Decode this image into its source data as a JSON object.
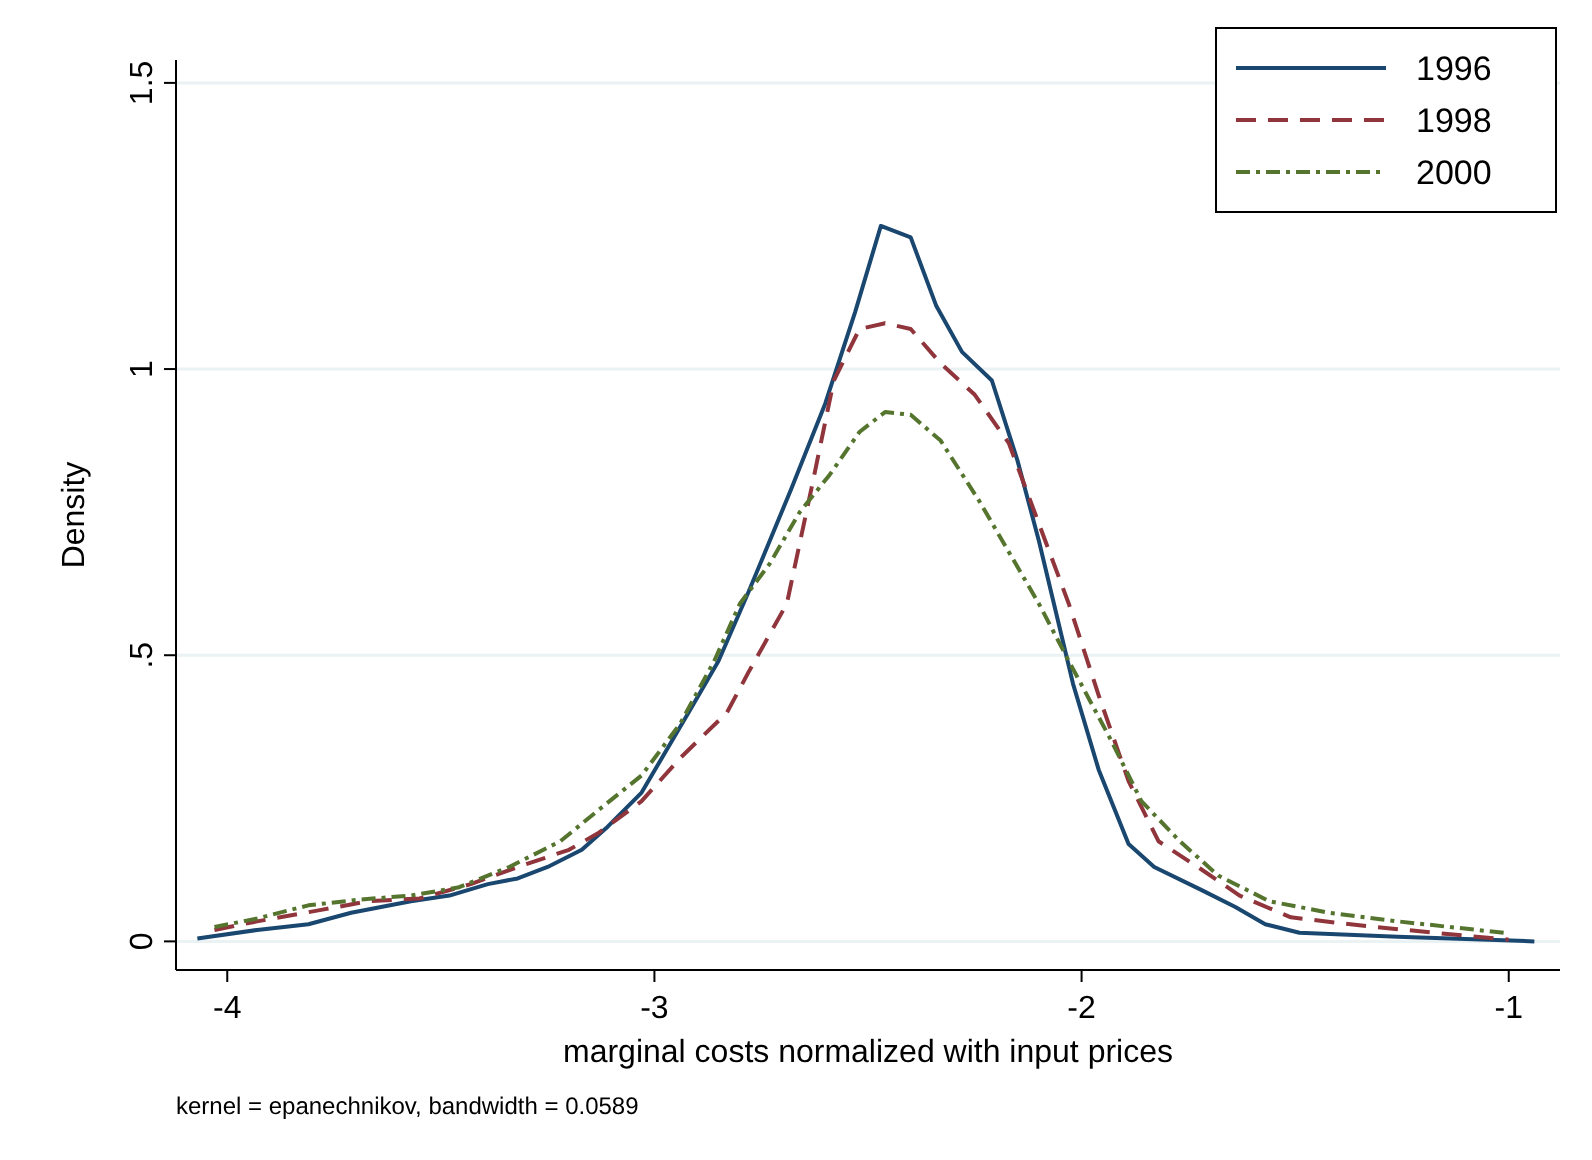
{
  "chart_data": {
    "type": "line",
    "xlabel": "marginal costs normalized with input prices",
    "ylabel": "Density",
    "annotations": [
      "kernel = epanechnikov, bandwidth = 0.0589"
    ],
    "xlim": [
      -4.12,
      -0.88
    ],
    "ylim": [
      -0.05,
      1.54
    ],
    "xticks": [
      -4,
      -3,
      -2,
      -1
    ],
    "yticks": [
      0,
      {
        "value": 0.5,
        "label": ".5"
      },
      1,
      1.5
    ],
    "grid": "y",
    "legend": "top right",
    "series": [
      {
        "name": "1996",
        "color": "#1a476f",
        "line_style": "solid",
        "x": [
          -4.07,
          -3.93,
          -3.81,
          -3.71,
          -3.57,
          -3.48,
          -3.39,
          -3.32,
          -3.25,
          -3.17,
          -3.11,
          -3.03,
          -2.92,
          -2.85,
          -2.78,
          -2.68,
          -2.6,
          -2.53,
          -2.47,
          -2.4,
          -2.34,
          -2.28,
          -2.21,
          -2.15,
          -2.1,
          -2.02,
          -1.96,
          -1.89,
          -1.83,
          -1.72,
          -1.64,
          -1.57,
          -1.49,
          -1.26,
          -0.94
        ],
        "values": [
          0.005,
          0.02,
          0.03,
          0.05,
          0.07,
          0.08,
          0.1,
          0.11,
          0.13,
          0.16,
          0.2,
          0.26,
          0.4,
          0.49,
          0.61,
          0.79,
          0.94,
          1.1,
          1.25,
          1.23,
          1.11,
          1.03,
          0.98,
          0.84,
          0.7,
          0.45,
          0.3,
          0.17,
          0.13,
          0.09,
          0.06,
          0.03,
          0.015,
          0.008,
          0.0
        ]
      },
      {
        "name": "1998",
        "color": "#90353b",
        "line_style": "dashed",
        "x": [
          -4.03,
          -3.93,
          -3.78,
          -3.67,
          -3.55,
          -3.43,
          -3.32,
          -3.2,
          -3.13,
          -3.03,
          -2.94,
          -2.83,
          -2.78,
          -2.69,
          -2.63,
          -2.58,
          -2.52,
          -2.46,
          -2.4,
          -2.33,
          -2.25,
          -2.17,
          -2.1,
          -2.03,
          -1.96,
          -1.89,
          -1.82,
          -1.72,
          -1.63,
          -1.51,
          -1.35,
          -1.16,
          -1.0
        ],
        "values": [
          0.02,
          0.035,
          0.055,
          0.07,
          0.075,
          0.1,
          0.13,
          0.16,
          0.19,
          0.245,
          0.32,
          0.4,
          0.47,
          0.59,
          0.8,
          0.98,
          1.07,
          1.08,
          1.07,
          1.01,
          0.955,
          0.87,
          0.73,
          0.59,
          0.43,
          0.28,
          0.175,
          0.126,
          0.08,
          0.042,
          0.028,
          0.014,
          0.003
        ]
      },
      {
        "name": "2000",
        "color": "#55752f",
        "line_style": "dashdot",
        "x": [
          -4.03,
          -3.93,
          -3.81,
          -3.69,
          -3.57,
          -3.46,
          -3.34,
          -3.22,
          -3.13,
          -3.03,
          -2.94,
          -2.86,
          -2.8,
          -2.73,
          -2.66,
          -2.59,
          -2.52,
          -2.46,
          -2.4,
          -2.33,
          -2.24,
          -2.17,
          -2.1,
          -2.03,
          -1.93,
          -1.86,
          -1.77,
          -1.68,
          -1.56,
          -1.42,
          -1.26,
          -1.0
        ],
        "values": [
          0.025,
          0.04,
          0.063,
          0.073,
          0.08,
          0.094,
          0.13,
          0.175,
          0.23,
          0.29,
          0.38,
          0.49,
          0.59,
          0.66,
          0.75,
          0.815,
          0.89,
          0.925,
          0.92,
          0.875,
          0.77,
          0.68,
          0.59,
          0.49,
          0.35,
          0.245,
          0.175,
          0.115,
          0.07,
          0.05,
          0.035,
          0.014
        ]
      }
    ]
  }
}
